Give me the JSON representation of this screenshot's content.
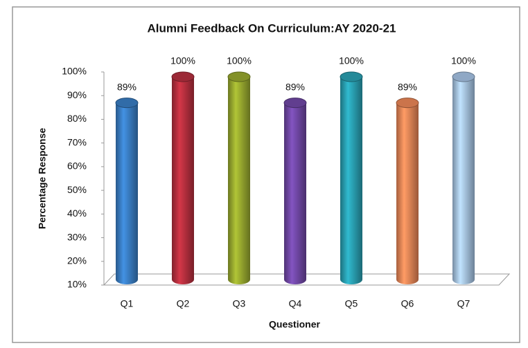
{
  "chart_data": {
    "type": "bar",
    "title": "Alumni Feedback On Curriculum:AY 2020-21",
    "x_label": "Questioner",
    "y_label": "Percentage Response",
    "categories": [
      "Q1",
      "Q2",
      "Q3",
      "Q4",
      "Q5",
      "Q6",
      "Q7"
    ],
    "values": [
      89,
      100,
      100,
      89,
      100,
      89,
      100
    ],
    "value_labels": [
      "89%",
      "100%",
      "100%",
      "89%",
      "100%",
      "89%",
      "100%"
    ],
    "colors": [
      "#3a7fc6",
      "#b8303f",
      "#9aab2f",
      "#7249a8",
      "#2aa2b4",
      "#ef8858",
      "#a8c6e8"
    ],
    "ylim": [
      10,
      100
    ],
    "yticks": [
      {
        "value": 10,
        "label": "10%"
      },
      {
        "value": 20,
        "label": "20%"
      },
      {
        "value": 30,
        "label": "30%"
      },
      {
        "value": 40,
        "label": "40%"
      },
      {
        "value": 50,
        "label": "50%"
      },
      {
        "value": 60,
        "label": "60%"
      },
      {
        "value": 70,
        "label": "70%"
      },
      {
        "value": 80,
        "label": "80%"
      },
      {
        "value": 90,
        "label": "90%"
      },
      {
        "value": 100,
        "label": "100%"
      }
    ]
  }
}
